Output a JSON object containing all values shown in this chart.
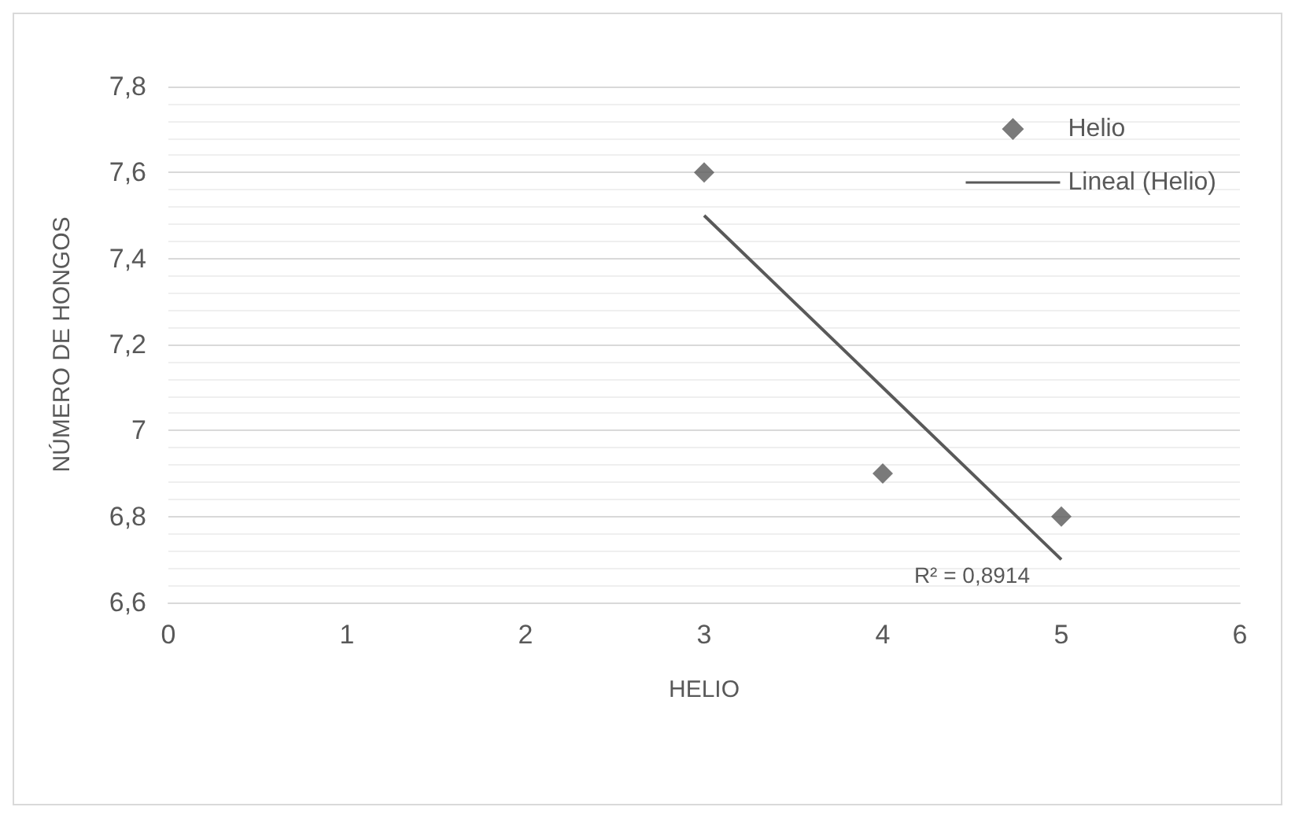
{
  "chart_data": {
    "type": "scatter",
    "xlabel": "HELIO",
    "ylabel": "NÚMERO DE HONGOS",
    "series": [
      {
        "name": "Helio",
        "color": "#595959",
        "marker": "diamond",
        "x": [
          3,
          4,
          5
        ],
        "values": [
          7.6,
          6.9,
          6.8
        ]
      },
      {
        "name": "Lineal (Helio)",
        "type": "line",
        "color": "#595959",
        "marker": "none",
        "x": [
          3,
          5
        ],
        "values": [
          7.5,
          6.7
        ]
      }
    ],
    "xlim": [
      0,
      6
    ],
    "xticks": [
      0,
      1,
      2,
      3,
      4,
      5,
      6
    ],
    "ylim": [
      6.6,
      7.8
    ],
    "yticks": [
      {
        "value": 6.6,
        "label": "6,6"
      },
      {
        "value": 6.8,
        "label": "6,8"
      },
      7,
      {
        "value": 7.2,
        "label": "7,2"
      },
      {
        "value": 7.4,
        "label": "7,4"
      },
      {
        "value": 7.6,
        "label": "7,6"
      },
      {
        "value": 7.8,
        "label": "7,8"
      }
    ],
    "grid": "y",
    "legend": "top right",
    "annotations": [
      {
        "text": "R² = 0,8914",
        "x": 5,
        "y": 6.7
      }
    ]
  }
}
